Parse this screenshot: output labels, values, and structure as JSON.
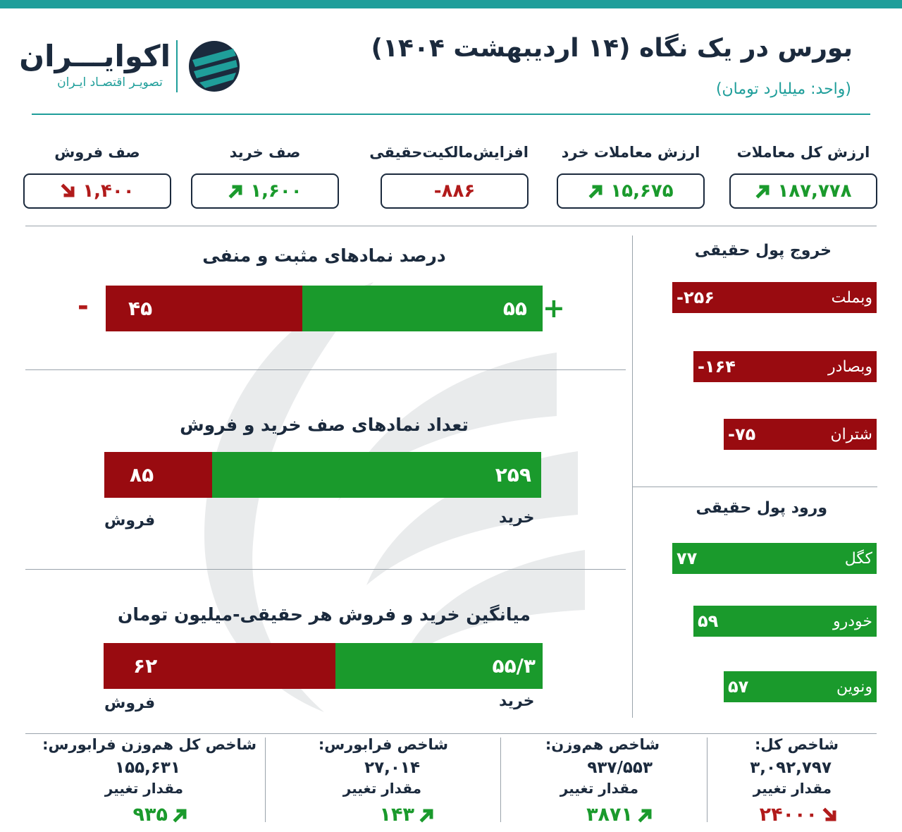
{
  "header": {
    "title": "بورس در یک نگاه (۱۴ اردیبهشت ۱۴۰۴)",
    "unit": "(واحد: میلیارد تومان)"
  },
  "logo": {
    "name": "اکوایـــران",
    "tagline": "تصویـر اقتصـاد ایـران"
  },
  "stats": [
    {
      "label": "ارزش کل معاملات",
      "value": "۱۸۷,۷۷۸",
      "trend": "up"
    },
    {
      "label": "ارزش معاملات خرد",
      "value": "۱۵,۶۷۵",
      "trend": "up"
    },
    {
      "label": "افزایش‌مالکیت‌حقیقی",
      "value": "-۸۸۶",
      "trend": "none"
    },
    {
      "label": "صف خرید",
      "value": "۱,۶۰۰",
      "trend": "up"
    },
    {
      "label": "صف فروش",
      "value": "۱,۴۰۰",
      "trend": "down"
    }
  ],
  "sections": {
    "pos_neg": {
      "title": "درصد نمادهای مثبت و منفی",
      "positive": "۵۵",
      "negative": "۴۵",
      "positive_value": 55,
      "negative_value": 45,
      "plus_sign": "+",
      "minus_sign": "-"
    },
    "queues": {
      "title": "تعداد نمادهای صف خرید و فروش",
      "buy": "۲۵۹",
      "sell": "۸۵",
      "buy_value": 259,
      "sell_value": 85,
      "buy_label": "خرید",
      "sell_label": "فروش"
    },
    "avg": {
      "title": "میانگین خرید و فروش هر حقیقی-میلیون تومان",
      "buy": "۵۵/۳",
      "sell": "۶۲",
      "buy_value": 55.3,
      "sell_value": 62,
      "buy_label": "خرید",
      "sell_label": "فروش"
    }
  },
  "outflow": {
    "title": "خروج پول حقیقی",
    "items": [
      {
        "name": "وبملت",
        "value": "-۲۵۶",
        "amount": 256
      },
      {
        "name": "وبصادر",
        "value": "-۱۶۴",
        "amount": 164
      },
      {
        "name": "شتران",
        "value": "-۷۵",
        "amount": 75
      }
    ]
  },
  "inflow": {
    "title": "ورود پول حقیقی",
    "items": [
      {
        "name": "کگل",
        "value": "۷۷",
        "amount": 77
      },
      {
        "name": "خودرو",
        "value": "۵۹",
        "amount": 59
      },
      {
        "name": "ونوین",
        "value": "۵۷",
        "amount": 57
      }
    ]
  },
  "indices": [
    {
      "title": "شاخص کل:",
      "value": "۳,۰۹۲,۷۹۷",
      "change_label": "مقدار تغییر",
      "change": "۲۴۰۰۰",
      "trend": "down"
    },
    {
      "title": "شاخص هم‌وزن:",
      "value": "۹۳۷/۵۵۳",
      "change_label": "مقدار تغییر",
      "change": "۳۸۷۱",
      "trend": "up"
    },
    {
      "title": "شاخص فرابورس:",
      "value": "۲۷,۰۱۴",
      "change_label": "مقدار تغییر",
      "change": "۱۴۳",
      "trend": "up"
    },
    {
      "title": "شاخص کل هم‌وزن فرابورس:",
      "value": "۱۵۵,۶۳۱",
      "change_label": "مقدار تغییر",
      "change": "۹۳۵",
      "trend": "up"
    }
  ],
  "colors": {
    "teal": "#1f9e9a",
    "green": "#1a9a2c",
    "red": "#990b10",
    "navy": "#1b2a3d"
  }
}
